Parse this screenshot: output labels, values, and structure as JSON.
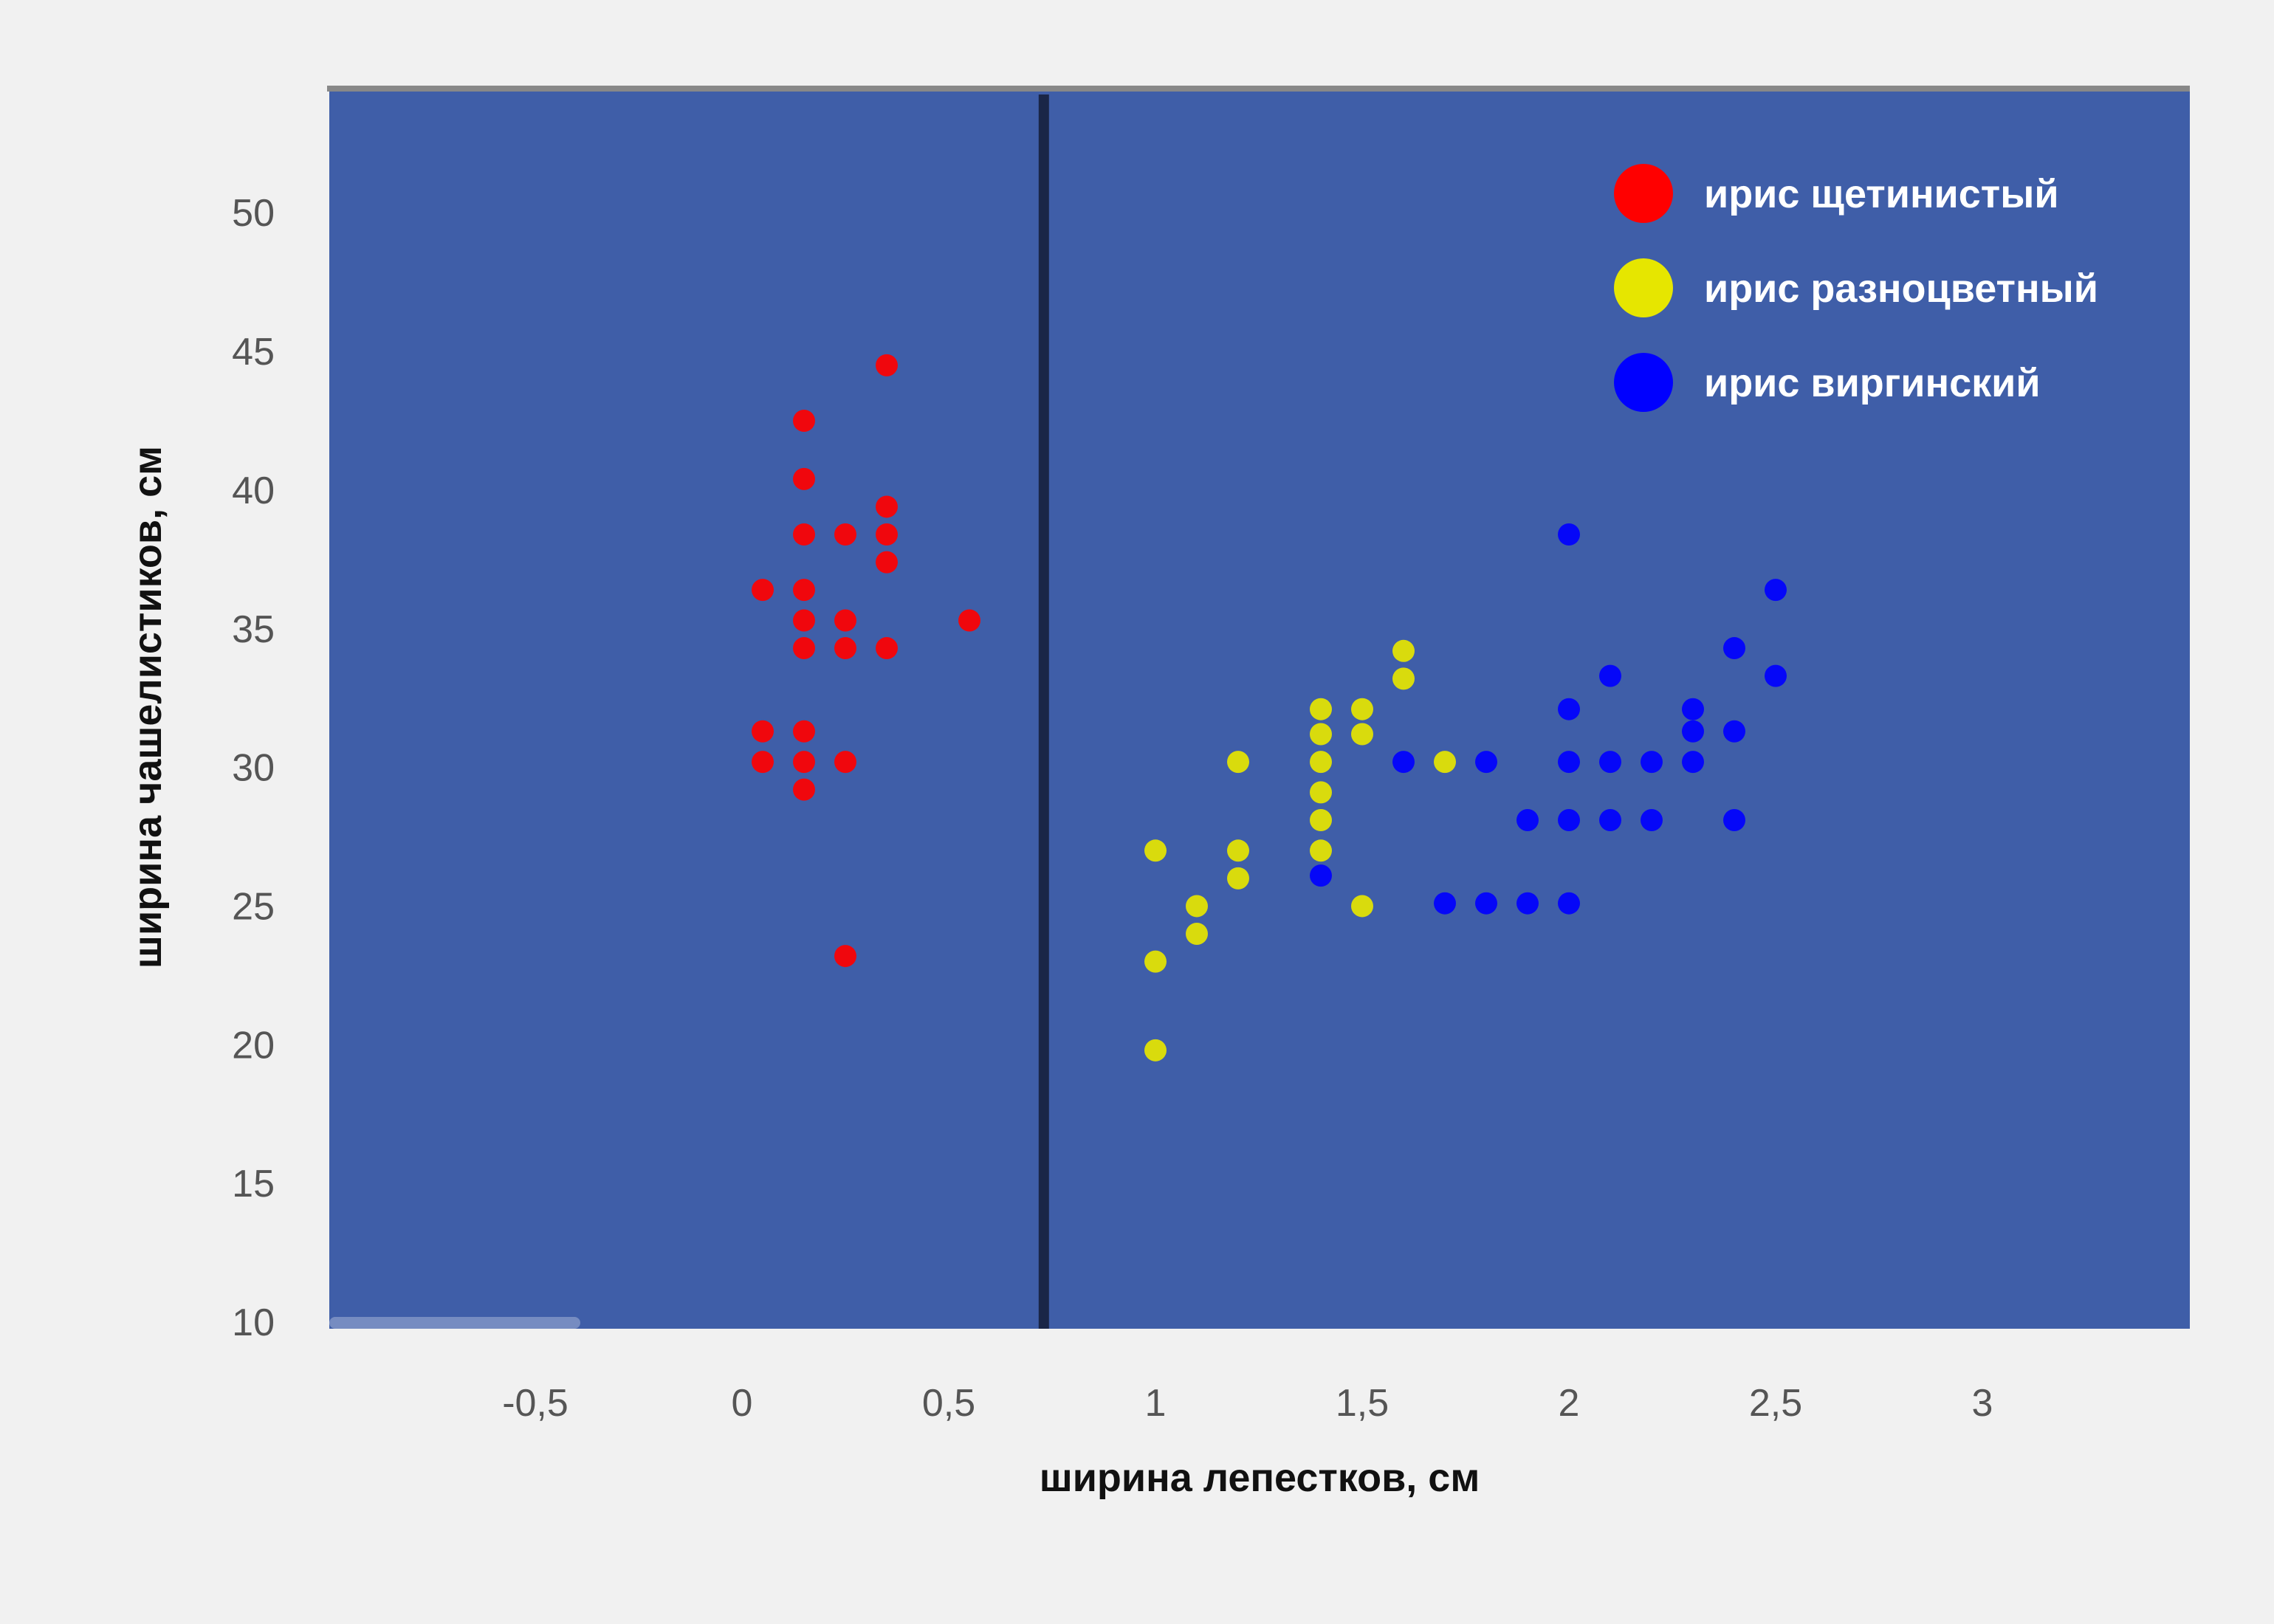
{
  "chart_data": {
    "type": "scatter",
    "xlabel": "ширина лепестков, см",
    "ylabel": "ширина чашелистиков, см",
    "xlim": [
      -1,
      3.5
    ],
    "ylim": [
      10,
      55
    ],
    "x_ticks": [
      "-0,5",
      "0",
      "0,5",
      "1",
      "1,5",
      "2",
      "2,5",
      "3"
    ],
    "x_tick_values": [
      -0.5,
      0,
      0.5,
      1,
      1.5,
      2,
      2.5,
      3
    ],
    "y_ticks": [
      "10",
      "15",
      "20",
      "25",
      "30",
      "35",
      "40",
      "45",
      "50"
    ],
    "y_tick_values": [
      10,
      15,
      20,
      25,
      30,
      35,
      40,
      45,
      50
    ],
    "decision_boundary_x": 0.73,
    "plot_background": "#3f5ea8",
    "legend_position": "top-right",
    "series": [
      {
        "name": "ирис щетинистый",
        "color": "#ff0000",
        "points": [
          [
            0.35,
            44.5
          ],
          [
            0.15,
            42.5
          ],
          [
            0.15,
            40.4
          ],
          [
            0.35,
            39.4
          ],
          [
            0.15,
            38.4
          ],
          [
            0.25,
            38.4
          ],
          [
            0.35,
            38.4
          ],
          [
            0.35,
            37.4
          ],
          [
            0.05,
            36.4
          ],
          [
            0.15,
            36.4
          ],
          [
            0.15,
            35.3
          ],
          [
            0.25,
            35.3
          ],
          [
            0.55,
            35.3
          ],
          [
            0.15,
            34.3
          ],
          [
            0.25,
            34.3
          ],
          [
            0.35,
            34.3
          ],
          [
            0.05,
            31.3
          ],
          [
            0.15,
            31.3
          ],
          [
            0.05,
            30.2
          ],
          [
            0.15,
            30.2
          ],
          [
            0.25,
            30.2
          ],
          [
            0.15,
            29.2
          ],
          [
            0.25,
            23.2
          ]
        ]
      },
      {
        "name": "ирис разноцветный",
        "color": "#e6e600",
        "points": [
          [
            1.6,
            34.2
          ],
          [
            1.6,
            33.2
          ],
          [
            1.4,
            32.1
          ],
          [
            1.5,
            32.1
          ],
          [
            1.4,
            31.2
          ],
          [
            1.5,
            31.2
          ],
          [
            1.2,
            30.2
          ],
          [
            1.4,
            30.2
          ],
          [
            1.7,
            30.2
          ],
          [
            1.4,
            29.1
          ],
          [
            1.4,
            28.1
          ],
          [
            1.0,
            27.0
          ],
          [
            1.2,
            27.0
          ],
          [
            1.4,
            27.0
          ],
          [
            1.2,
            26.0
          ],
          [
            1.1,
            25.0
          ],
          [
            1.5,
            25.0
          ],
          [
            1.1,
            24.0
          ],
          [
            1.0,
            23.0
          ],
          [
            1.0,
            19.8
          ]
        ]
      },
      {
        "name": "ирис виргинский",
        "color": "#0000ff",
        "points": [
          [
            2.0,
            38.4
          ],
          [
            2.5,
            36.4
          ],
          [
            2.4,
            34.3
          ],
          [
            2.1,
            33.3
          ],
          [
            2.5,
            33.3
          ],
          [
            2.0,
            32.1
          ],
          [
            2.3,
            32.1
          ],
          [
            2.3,
            31.3
          ],
          [
            2.4,
            31.3
          ],
          [
            1.6,
            30.2
          ],
          [
            1.8,
            30.2
          ],
          [
            2.0,
            30.2
          ],
          [
            2.1,
            30.2
          ],
          [
            2.2,
            30.2
          ],
          [
            2.3,
            30.2
          ],
          [
            1.9,
            28.1
          ],
          [
            2.0,
            28.1
          ],
          [
            2.1,
            28.1
          ],
          [
            2.2,
            28.1
          ],
          [
            2.4,
            28.1
          ],
          [
            1.4,
            26.1
          ],
          [
            1.7,
            25.1
          ],
          [
            1.8,
            25.1
          ],
          [
            1.9,
            25.1
          ],
          [
            2.0,
            25.1
          ]
        ]
      }
    ]
  }
}
